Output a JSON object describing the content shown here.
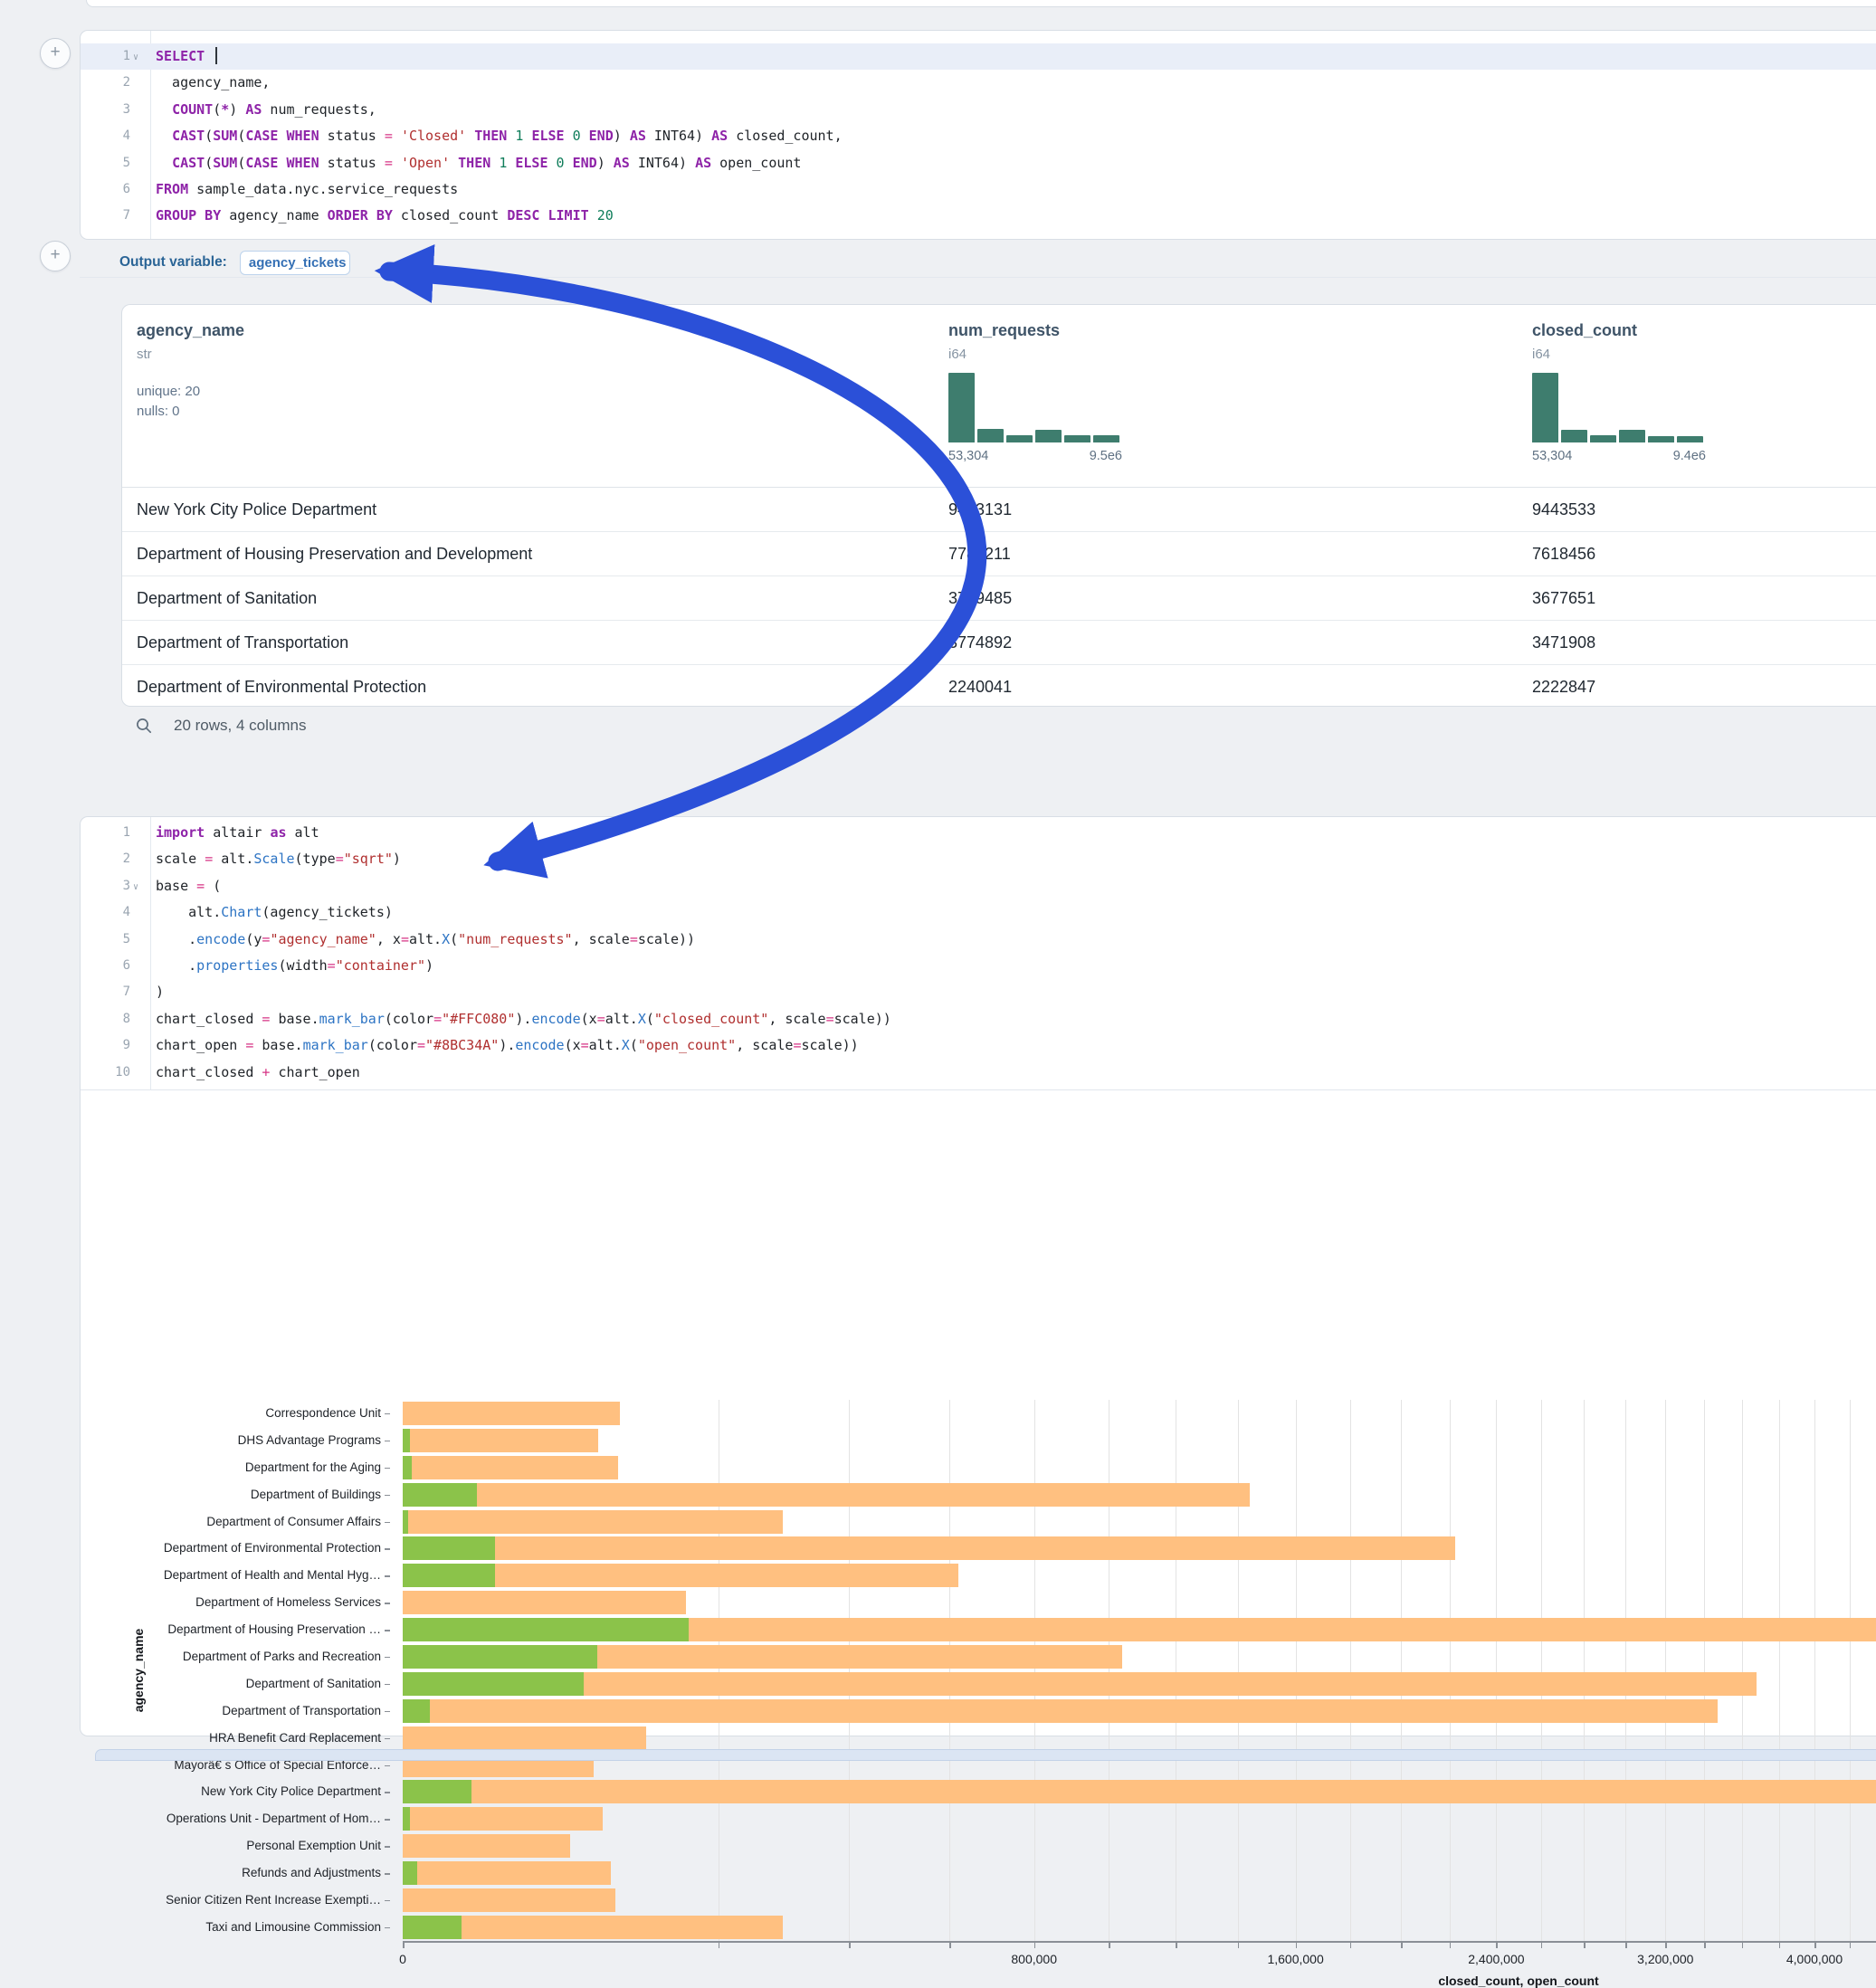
{
  "colors": {
    "arrow": "#2b50d8",
    "bar_closed": "#FFC080",
    "bar_open": "#8BC34A",
    "histogram": "#3e7d6e"
  },
  "add_cell_button": "+",
  "sql_cell": {
    "lines": [
      {
        "n": "1",
        "fold": true,
        "hl": true,
        "caret": true,
        "t": [
          [
            "SELECT ",
            "k"
          ]
        ]
      },
      {
        "n": "2",
        "t": [
          [
            "  agency_name,",
            "d"
          ]
        ]
      },
      {
        "n": "3",
        "t": [
          [
            "  ",
            "d"
          ],
          [
            "COUNT",
            "k"
          ],
          [
            "(",
            "d"
          ],
          [
            "*",
            "k"
          ],
          [
            ")",
            "d"
          ],
          [
            " ",
            "d"
          ],
          [
            "AS",
            "k"
          ],
          [
            " num_requests,",
            "d"
          ]
        ]
      },
      {
        "n": "4",
        "t": [
          [
            "  ",
            "d"
          ],
          [
            "CAST",
            "k"
          ],
          [
            "(",
            "d"
          ],
          [
            "SUM",
            "k"
          ],
          [
            "(",
            "d"
          ],
          [
            "CASE",
            "k"
          ],
          [
            " ",
            "d"
          ],
          [
            "WHEN",
            "k"
          ],
          [
            " status ",
            "d"
          ],
          [
            "=",
            "o"
          ],
          [
            " ",
            "d"
          ],
          [
            "'Closed'",
            "s"
          ],
          [
            " ",
            "d"
          ],
          [
            "THEN",
            "k"
          ],
          [
            " ",
            "d"
          ],
          [
            "1",
            "n"
          ],
          [
            " ",
            "d"
          ],
          [
            "ELSE",
            "k"
          ],
          [
            " ",
            "d"
          ],
          [
            "0",
            "n"
          ],
          [
            " ",
            "d"
          ],
          [
            "END",
            "k"
          ],
          [
            ")",
            "d"
          ],
          [
            " ",
            "d"
          ],
          [
            "AS",
            "k"
          ],
          [
            " INT64)",
            "d"
          ],
          [
            " ",
            "d"
          ],
          [
            "AS",
            "k"
          ],
          [
            " closed_count,",
            "d"
          ]
        ]
      },
      {
        "n": "5",
        "t": [
          [
            "  ",
            "d"
          ],
          [
            "CAST",
            "k"
          ],
          [
            "(",
            "d"
          ],
          [
            "SUM",
            "k"
          ],
          [
            "(",
            "d"
          ],
          [
            "CASE",
            "k"
          ],
          [
            " ",
            "d"
          ],
          [
            "WHEN",
            "k"
          ],
          [
            " status ",
            "d"
          ],
          [
            "=",
            "o"
          ],
          [
            " ",
            "d"
          ],
          [
            "'Open'",
            "s"
          ],
          [
            " ",
            "d"
          ],
          [
            "THEN",
            "k"
          ],
          [
            " ",
            "d"
          ],
          [
            "1",
            "n"
          ],
          [
            " ",
            "d"
          ],
          [
            "ELSE",
            "k"
          ],
          [
            " ",
            "d"
          ],
          [
            "0",
            "n"
          ],
          [
            " ",
            "d"
          ],
          [
            "END",
            "k"
          ],
          [
            ")",
            "d"
          ],
          [
            " ",
            "d"
          ],
          [
            "AS",
            "k"
          ],
          [
            " INT64)",
            "d"
          ],
          [
            " ",
            "d"
          ],
          [
            "AS",
            "k"
          ],
          [
            " open_count",
            "d"
          ]
        ]
      },
      {
        "n": "6",
        "t": [
          [
            "FROM",
            "k"
          ],
          [
            " sample_data.nyc.service_requests",
            "d"
          ]
        ]
      },
      {
        "n": "7",
        "t": [
          [
            "GROUP BY",
            "k"
          ],
          [
            " agency_name ",
            "d"
          ],
          [
            "ORDER BY",
            "k"
          ],
          [
            " closed_count ",
            "d"
          ],
          [
            "DESC",
            "k"
          ],
          [
            " ",
            "d"
          ],
          [
            "LIMIT",
            "k"
          ],
          [
            " ",
            "d"
          ],
          [
            "20",
            "n"
          ]
        ]
      }
    ]
  },
  "output_variable": {
    "label": "Output variable:",
    "value": "agency_tickets"
  },
  "table": {
    "columns": [
      {
        "name": "agency_name",
        "type": "str",
        "stats": [
          "unique: 20",
          "nulls: 0"
        ]
      },
      {
        "name": "num_requests",
        "type": "i64",
        "hist": {
          "bars": [
            100,
            19,
            10,
            18,
            10,
            10
          ],
          "min_label": "53,304",
          "max_label": "9.5e6"
        }
      },
      {
        "name": "closed_count",
        "type": "i64",
        "hist": {
          "bars": [
            100,
            18,
            10,
            18,
            9,
            9
          ],
          "min_label": "53,304",
          "max_label": "9.4e6"
        }
      }
    ],
    "rows": [
      [
        "New York City Police Department",
        "9453131",
        "9443533"
      ],
      [
        "Department of Housing Preservation and Development",
        "7782211",
        "7618456"
      ],
      [
        "Department of Sanitation",
        "3749485",
        "3677651"
      ],
      [
        "Department of Transportation",
        "3774892",
        "3471908"
      ],
      [
        "Department of Environmental Protection",
        "2240041",
        "2222847"
      ]
    ],
    "footer": "20 rows, 4 columns"
  },
  "python_cell": {
    "lines": [
      {
        "n": "1",
        "t": [
          [
            "import",
            "k"
          ],
          [
            " altair ",
            "d"
          ],
          [
            "as",
            "k"
          ],
          [
            " alt",
            "d"
          ]
        ]
      },
      {
        "n": "2",
        "t": [
          [
            "scale ",
            "d"
          ],
          [
            "=",
            "o"
          ],
          [
            " alt.",
            "d"
          ],
          [
            "Scale",
            "f"
          ],
          [
            "(type",
            "d"
          ],
          [
            "=",
            "o"
          ],
          [
            "\"sqrt\"",
            "s"
          ],
          [
            ")",
            "d"
          ]
        ]
      },
      {
        "n": "3",
        "fold": true,
        "t": [
          [
            "base ",
            "d"
          ],
          [
            "=",
            "o"
          ],
          [
            " (",
            "d"
          ]
        ]
      },
      {
        "n": "4",
        "t": [
          [
            "    alt.",
            "d"
          ],
          [
            "Chart",
            "f"
          ],
          [
            "(agency_tickets)",
            "d"
          ]
        ]
      },
      {
        "n": "5",
        "t": [
          [
            "    .",
            "d"
          ],
          [
            "encode",
            "f"
          ],
          [
            "(y",
            "d"
          ],
          [
            "=",
            "o"
          ],
          [
            "\"agency_name\"",
            "s"
          ],
          [
            ", x",
            "d"
          ],
          [
            "=",
            "o"
          ],
          [
            "alt.",
            "d"
          ],
          [
            "X",
            "f"
          ],
          [
            "(",
            "d"
          ],
          [
            "\"num_requests\"",
            "s"
          ],
          [
            ", scale",
            "d"
          ],
          [
            "=",
            "o"
          ],
          [
            "scale))",
            "d"
          ]
        ]
      },
      {
        "n": "6",
        "t": [
          [
            "    .",
            "d"
          ],
          [
            "properties",
            "f"
          ],
          [
            "(width",
            "d"
          ],
          [
            "=",
            "o"
          ],
          [
            "\"container\"",
            "s"
          ],
          [
            ")",
            "d"
          ]
        ]
      },
      {
        "n": "7",
        "t": [
          [
            ")",
            "d"
          ]
        ]
      },
      {
        "n": "8",
        "t": [
          [
            "chart_closed ",
            "d"
          ],
          [
            "=",
            "o"
          ],
          [
            " base.",
            "d"
          ],
          [
            "mark_bar",
            "f"
          ],
          [
            "(color",
            "d"
          ],
          [
            "=",
            "o"
          ],
          [
            "\"#FFC080\"",
            "s"
          ],
          [
            ").",
            "d"
          ],
          [
            "encode",
            "f"
          ],
          [
            "(x",
            "d"
          ],
          [
            "=",
            "o"
          ],
          [
            "alt.",
            "d"
          ],
          [
            "X",
            "f"
          ],
          [
            "(",
            "d"
          ],
          [
            "\"closed_count\"",
            "s"
          ],
          [
            ", scale",
            "d"
          ],
          [
            "=",
            "o"
          ],
          [
            "scale))",
            "d"
          ]
        ]
      },
      {
        "n": "9",
        "t": [
          [
            "chart_open ",
            "d"
          ],
          [
            "=",
            "o"
          ],
          [
            " base.",
            "d"
          ],
          [
            "mark_bar",
            "f"
          ],
          [
            "(color",
            "d"
          ],
          [
            "=",
            "o"
          ],
          [
            "\"#8BC34A\"",
            "s"
          ],
          [
            ").",
            "d"
          ],
          [
            "encode",
            "f"
          ],
          [
            "(x",
            "d"
          ],
          [
            "=",
            "o"
          ],
          [
            "alt.",
            "d"
          ],
          [
            "X",
            "f"
          ],
          [
            "(",
            "d"
          ],
          [
            "\"open_count\"",
            "s"
          ],
          [
            ", scale",
            "d"
          ],
          [
            "=",
            "o"
          ],
          [
            "scale))",
            "d"
          ]
        ]
      },
      {
        "n": "10",
        "t": [
          [
            "chart_closed ",
            "d"
          ],
          [
            "+",
            "o"
          ],
          [
            " chart_open",
            "d"
          ]
        ]
      }
    ]
  },
  "chart_data": {
    "type": "bar",
    "orientation": "horizontal",
    "scale": "sqrt",
    "grid": true,
    "grid_interval": 200000,
    "xlabel": "closed_count, open_count",
    "ylabel": "agency_name",
    "x_ticks": [
      {
        "value": 0,
        "label": "0"
      },
      {
        "value": 800000,
        "label": "800,000"
      },
      {
        "value": 1600000,
        "label": "1,600,000"
      },
      {
        "value": 2400000,
        "label": "2,400,000"
      },
      {
        "value": 3200000,
        "label": "3,200,000"
      },
      {
        "value": 4000000,
        "label": "4,000,000"
      }
    ],
    "x_domain": [
      0,
      10000000
    ],
    "x_visible_max": 4360000,
    "categories": [
      "Correspondence Unit",
      "DHS Advantage Programs",
      "Department for the Aging",
      "Department of Buildings",
      "Department of Consumer Affairs",
      "Department of Environmental Protection",
      "Department of Health and Mental Hyg…",
      "Department of Homeless Services",
      "Department of Housing Preservation …",
      "Department of Parks and Recreation",
      "Department of Sanitation",
      "Department of Transportation",
      "HRA Benefit Card Replacement",
      "Mayorâ€ s Office of Special Enforce…",
      "New York City Police Department",
      "Operations Unit - Department of Hom…",
      "Personal Exemption Unit",
      "Refunds and Adjustments",
      "Senior Citizen Rent Increase Exempti…",
      "Taxi and Limousine Commission"
    ],
    "series": [
      {
        "name": "closed_count",
        "color": "#FFC080",
        "values": [
          95000,
          77000,
          93000,
          1440000,
          290000,
          2222847,
          620000,
          161000,
          7618456,
          1040000,
          3677651,
          3471908,
          119000,
          73000,
          9443533,
          80000,
          56000,
          87000,
          91000,
          290000
        ]
      },
      {
        "name": "open_count",
        "color": "#8BC34A",
        "values": [
          0,
          100,
          150,
          11000,
          50,
          17194,
          17000,
          0,
          163755,
          76000,
          66000,
          1500,
          0,
          0,
          9598,
          100,
          0,
          400,
          0,
          7000
        ]
      }
    ]
  }
}
